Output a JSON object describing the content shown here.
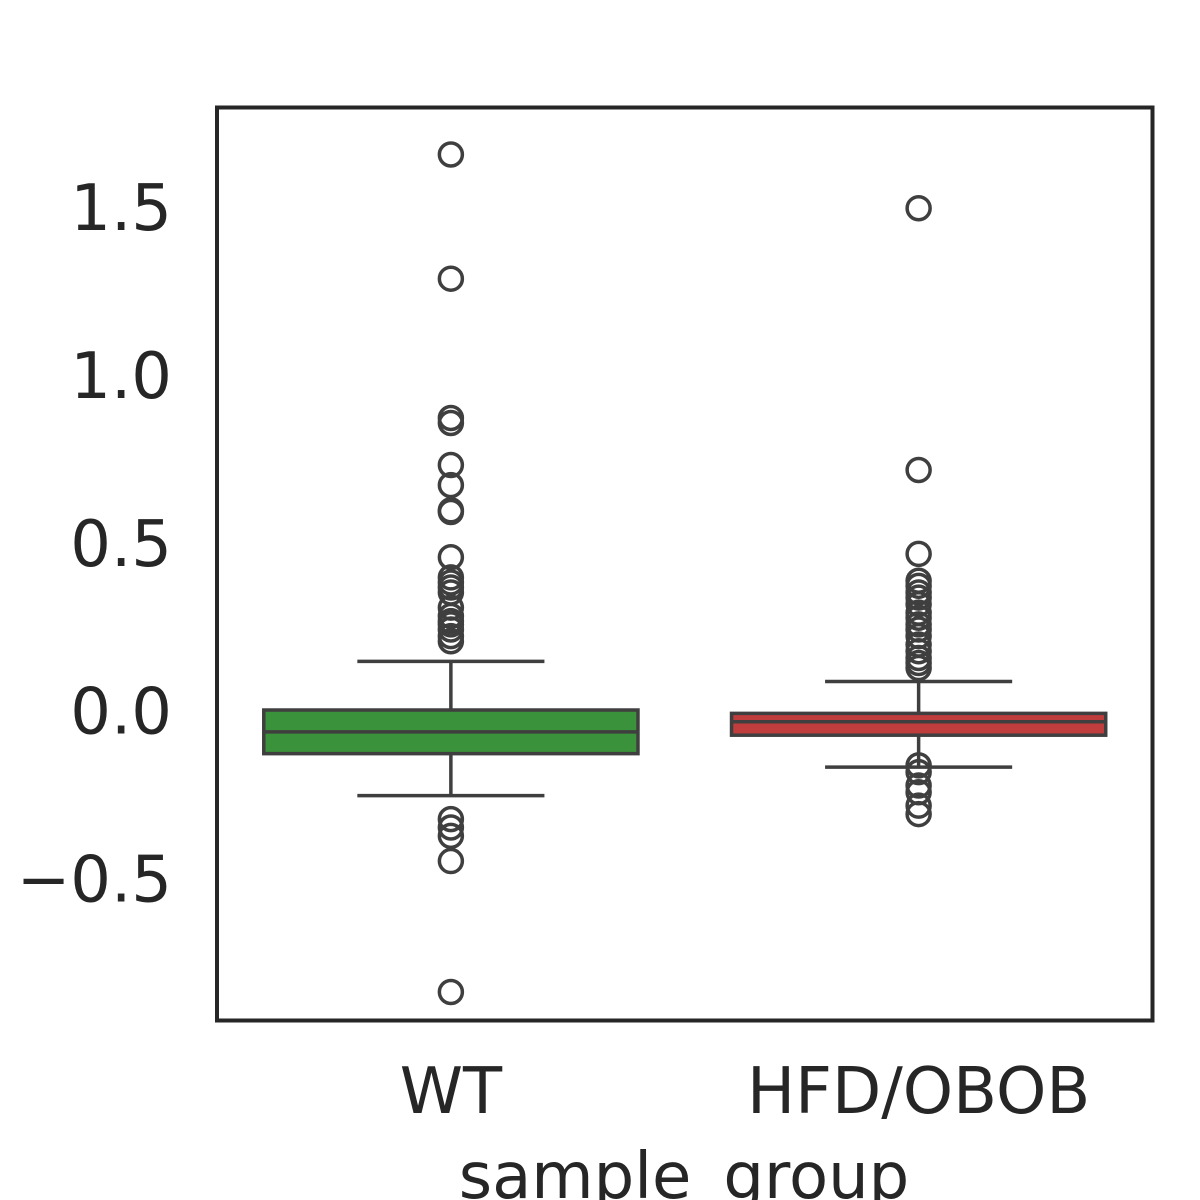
{
  "chart_data": {
    "type": "box",
    "title": "",
    "xlabel": "sample_group",
    "ylabel": "",
    "ylim": [
      -0.92,
      1.8
    ],
    "yticks": [
      {
        "value": 1.5,
        "label": "1.5"
      },
      {
        "value": 1.0,
        "label": "1.0"
      },
      {
        "value": 0.5,
        "label": "0.5"
      },
      {
        "value": 0.0,
        "label": "0.0"
      },
      {
        "value": -0.5,
        "label": "−0.5"
      }
    ],
    "grid": false,
    "categories": [
      "WT",
      "HFD/OBOB"
    ],
    "boxes": [
      {
        "category": "WT",
        "color": "#3a923a",
        "whisker_low": -0.25,
        "q1": -0.125,
        "median": -0.06,
        "q3": 0.005,
        "whisker_high": 0.15,
        "outliers": [
          1.66,
          1.29,
          0.875,
          0.86,
          0.735,
          0.675,
          0.6,
          0.595,
          0.46,
          0.4,
          0.385,
          0.37,
          0.355,
          0.31,
          0.285,
          0.27,
          0.26,
          0.245,
          0.225,
          0.21,
          -0.32,
          -0.345,
          -0.37,
          -0.445,
          -0.835
        ]
      },
      {
        "category": "HFD/OBOB",
        "color": "#c03d3e",
        "whisker_low": -0.165,
        "q1": -0.07,
        "median": -0.03,
        "q3": -0.005,
        "whisker_high": 0.09,
        "outliers": [
          1.5,
          0.72,
          0.47,
          0.39,
          0.375,
          0.355,
          0.34,
          0.32,
          0.295,
          0.28,
          0.26,
          0.245,
          0.225,
          0.2,
          0.18,
          0.16,
          0.145,
          0.13,
          -0.16,
          -0.18,
          -0.22,
          -0.24,
          -0.28,
          -0.305
        ]
      }
    ]
  }
}
